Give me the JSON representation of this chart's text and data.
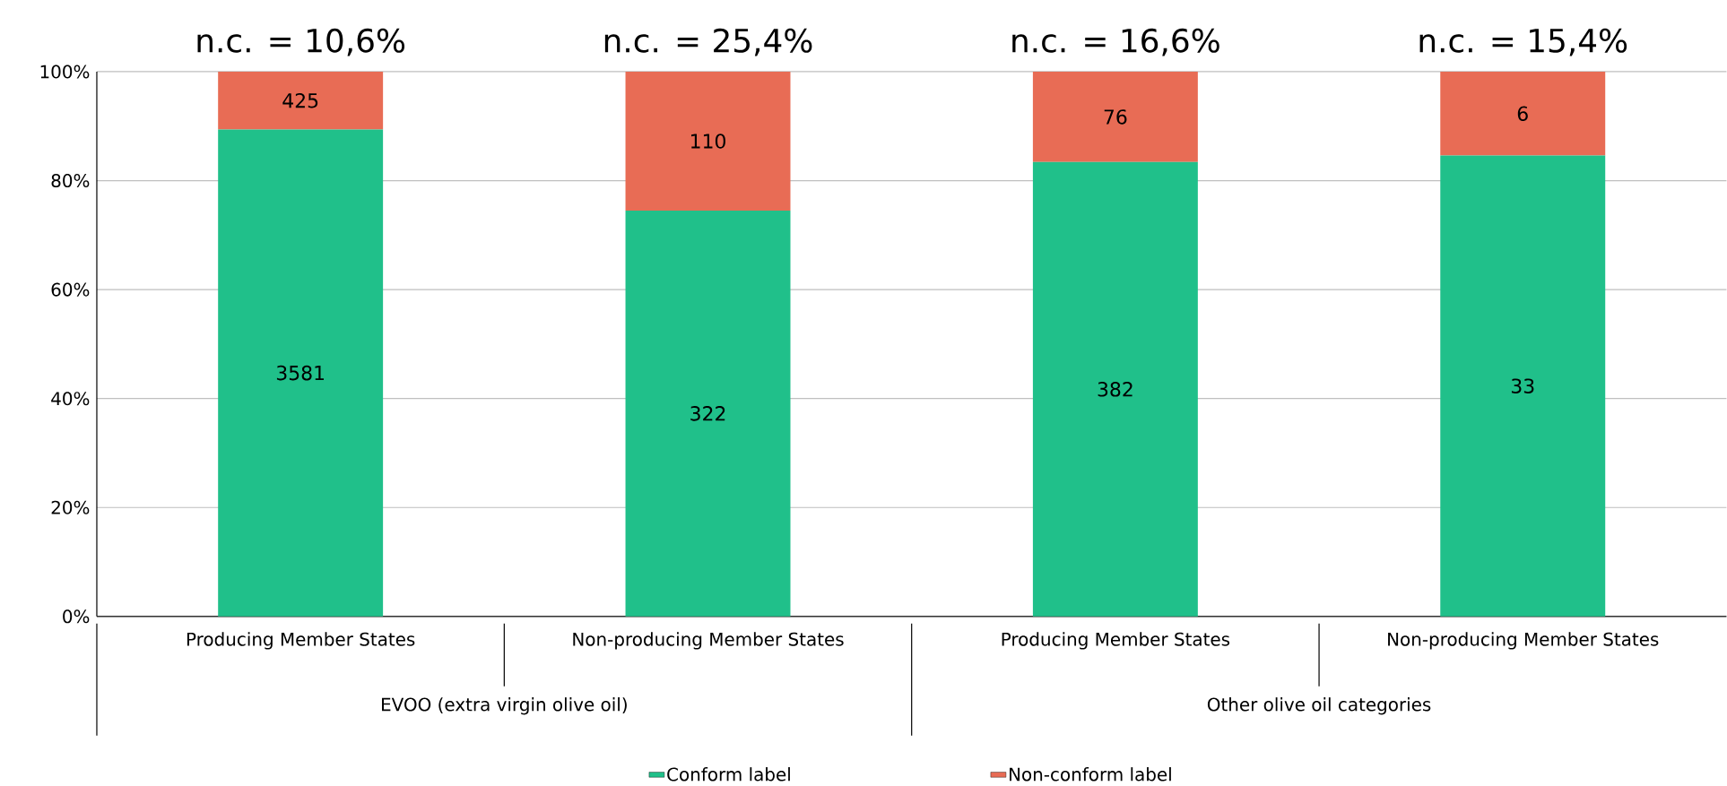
{
  "chart_data": {
    "type": "bar",
    "stacked": true,
    "categories": [
      "Producing Member States",
      "Non-producing Member States",
      "Producing Member States",
      "Non-producing Member States"
    ],
    "series": [
      {
        "name": "Conform label",
        "color": "#20c08a",
        "values": [
          89.4,
          74.5,
          83.4,
          84.6
        ]
      },
      {
        "name": "Non-conform label",
        "color": "#e86c55",
        "values": [
          10.6,
          25.5,
          16.6,
          15.4
        ]
      }
    ],
    "ylim": [
      0,
      100
    ],
    "yticks": [
      {
        "value": 0,
        "label": "0%"
      },
      {
        "value": 20,
        "label": "20%"
      },
      {
        "value": 40,
        "label": "40%"
      },
      {
        "value": 60,
        "label": "60%"
      },
      {
        "value": 80,
        "label": "80%"
      },
      {
        "value": 100,
        "label": "100%"
      }
    ],
    "grid": "y",
    "legend": "bottom",
    "annotations": [
      "n.c. = 10,6%",
      "n.c. = 25,4%",
      "n.c. = 16,6%",
      "n.c. = 15,4%",
      "EVOO (extra virgin olive oil)",
      "Other olive oil categories",
      "3581",
      "322",
      "382",
      "33",
      "425",
      "110",
      "76",
      "6"
    ]
  }
}
